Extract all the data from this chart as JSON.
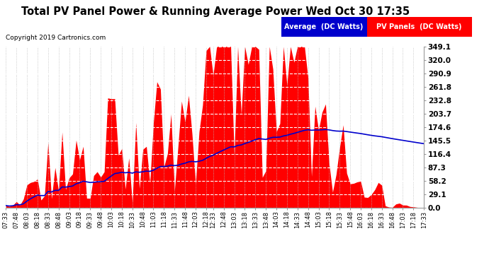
{
  "title": "Total PV Panel Power & Running Average Power Wed Oct 30 17:35",
  "copyright": "Copyright 2019 Cartronics.com",
  "legend_avg": "Average  (DC Watts)",
  "legend_pv": "PV Panels  (DC Watts)",
  "ylabel_right_values": [
    0.0,
    29.1,
    58.2,
    87.3,
    116.4,
    145.5,
    174.6,
    203.7,
    232.8,
    261.8,
    290.9,
    320.0,
    349.1
  ],
  "ymax": 349.1,
  "ymin": 0.0,
  "background_color": "#ffffff",
  "plot_bg_color": "#ffffff",
  "grid_color": "#bbbbbb",
  "bar_color": "#ff0000",
  "avg_line_color": "#0000cc",
  "x_tick_labels": [
    "07:33",
    "07:48",
    "08:03",
    "08:18",
    "08:33",
    "08:48",
    "09:03",
    "09:18",
    "09:33",
    "09:48",
    "10:03",
    "10:18",
    "10:33",
    "10:48",
    "11:03",
    "11:18",
    "11:33",
    "11:48",
    "12:03",
    "12:18",
    "12:33",
    "12:48",
    "13:03",
    "13:18",
    "13:33",
    "13:48",
    "14:03",
    "14:18",
    "14:33",
    "14:48",
    "15:03",
    "15:18",
    "15:33",
    "15:48",
    "16:03",
    "16:18",
    "16:33",
    "16:48",
    "17:03",
    "17:18",
    "17:33"
  ]
}
